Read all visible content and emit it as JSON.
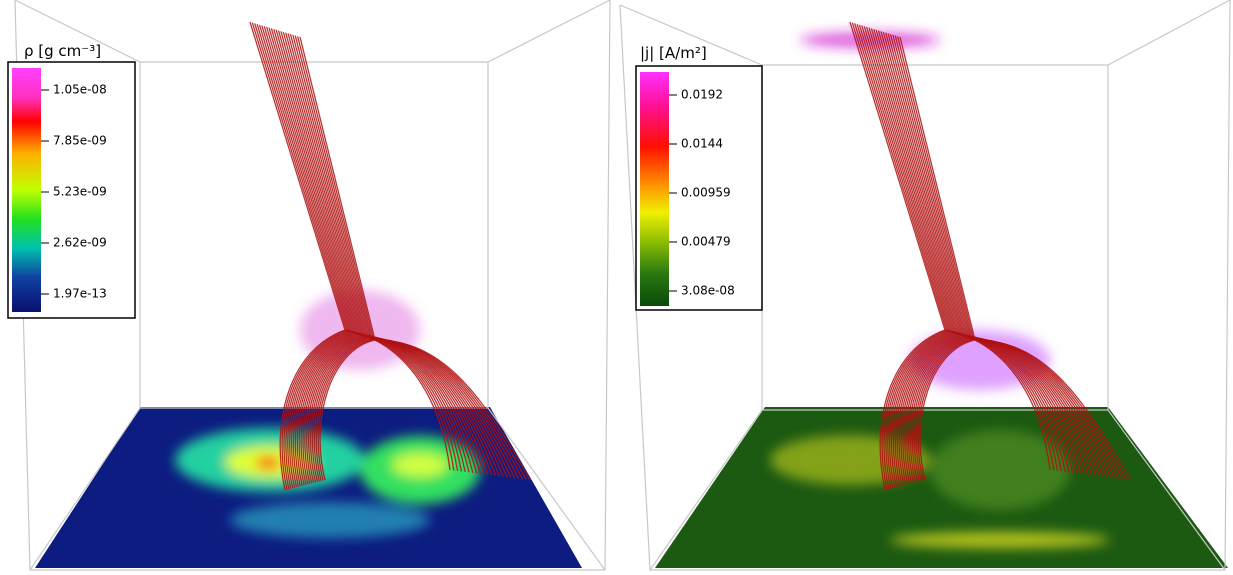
{
  "panels": [
    {
      "colorbar": {
        "title": "ρ  [g cm⁻³]",
        "ticks": [
          "1.05e-08",
          "7.85e-09",
          "5.23e-09",
          "2.62e-09",
          "1.97e-13"
        ]
      }
    },
    {
      "colorbar": {
        "title": "|j| [A/m²]",
        "ticks": [
          "0.0192",
          "0.0144",
          "0.00959",
          "0.00479",
          "3.08e-08"
        ]
      }
    }
  ]
}
